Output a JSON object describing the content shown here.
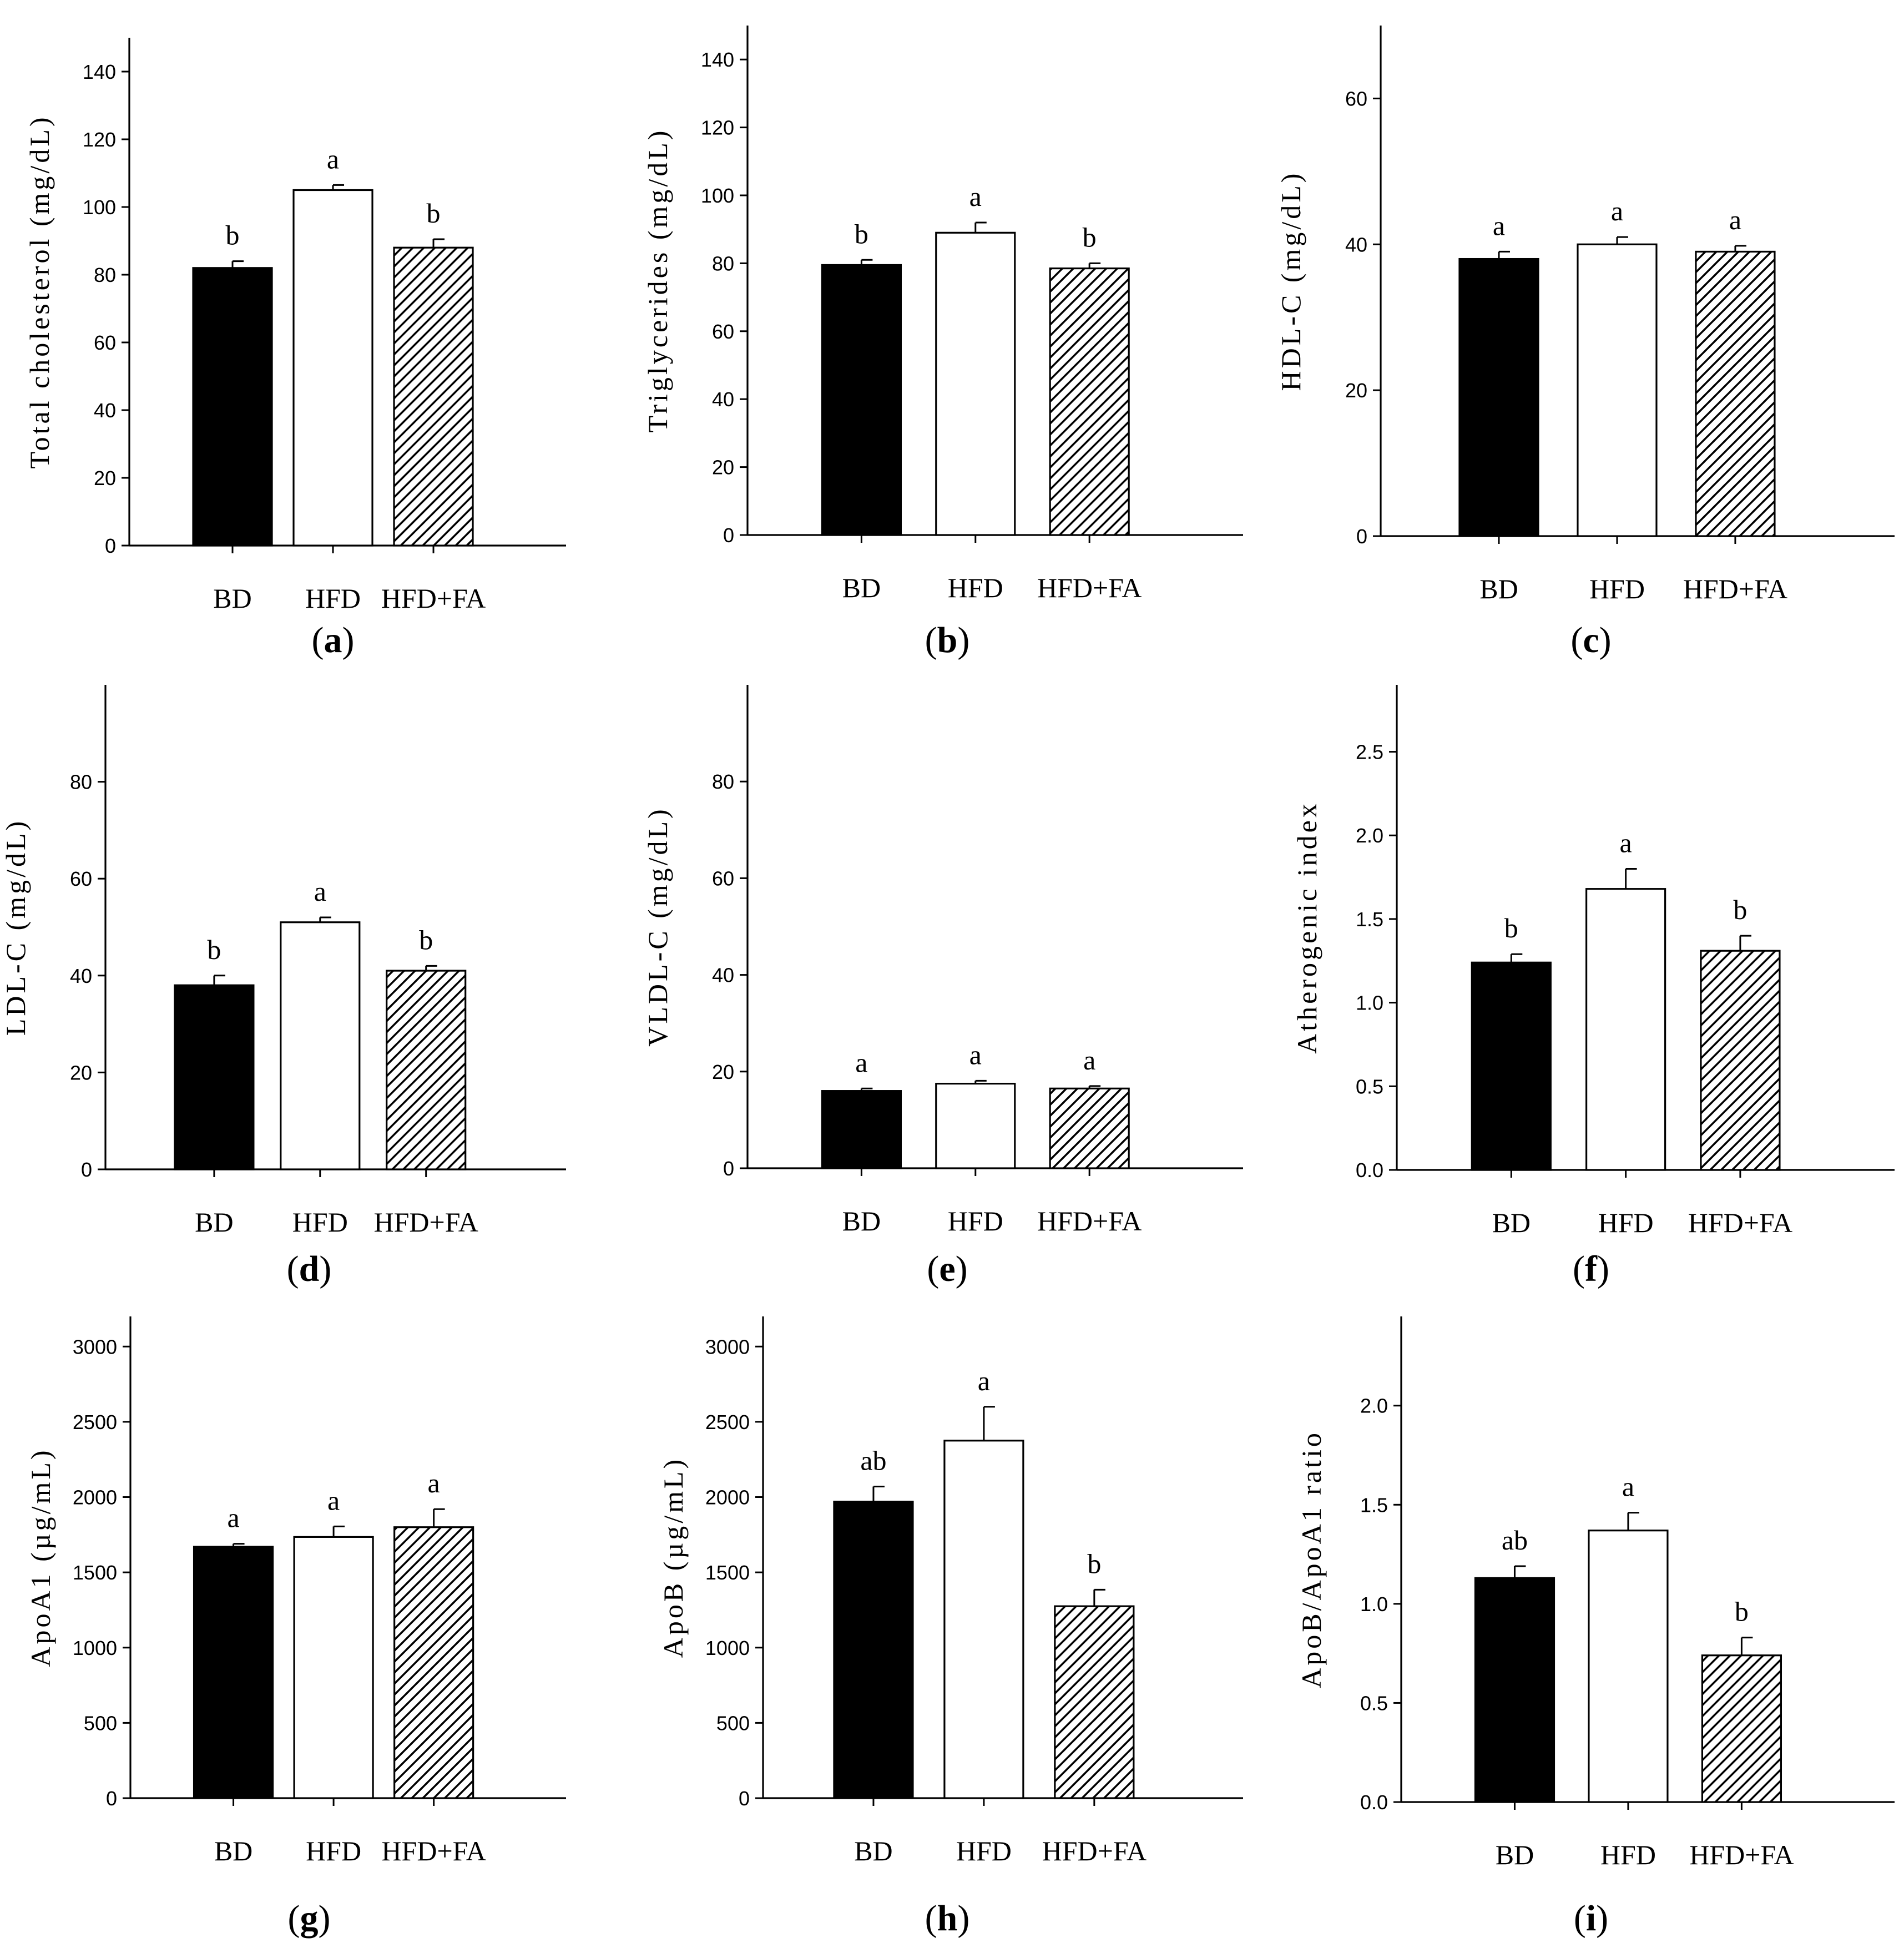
{
  "fill_colors": {
    "BD": "#000000",
    "HFD": "#ffffff",
    "HFD+FA": "hatch"
  },
  "chart_data": [
    {
      "panel": "a",
      "label": "(a)",
      "label_letter": "a",
      "type": "bar",
      "title": "",
      "ylabel": "Total cholesterol (mg/dL)",
      "categories": [
        "BD",
        "HFD",
        "HFD+FA"
      ],
      "values": [
        82,
        105,
        88
      ],
      "errors": [
        2,
        1.5,
        2.5
      ],
      "significance": [
        "b",
        "a",
        "b"
      ],
      "ylim": [
        0,
        150
      ],
      "yticks": [
        0,
        20,
        40,
        60,
        80,
        100,
        120,
        140
      ],
      "ytick_labels": [
        "0",
        "20",
        "40",
        "60",
        "80",
        "100",
        "120",
        "140"
      ]
    },
    {
      "panel": "b",
      "label": "(b)",
      "label_letter": "b",
      "type": "bar",
      "title": "",
      "ylabel": "Triglycerides (mg/dL)",
      "categories": [
        "BD",
        "HFD",
        "HFD+FA"
      ],
      "values": [
        79.5,
        89,
        78.5
      ],
      "errors": [
        1.5,
        3,
        1.5
      ],
      "significance": [
        "b",
        "a",
        "b"
      ],
      "ylim": [
        0,
        150
      ],
      "yticks": [
        0,
        20,
        40,
        60,
        80,
        100,
        120,
        140
      ],
      "ytick_labels": [
        "0",
        "20",
        "40",
        "60",
        "80",
        "100",
        "120",
        "140"
      ]
    },
    {
      "panel": "c",
      "label": "(c)",
      "label_letter": "c",
      "type": "bar",
      "title": "",
      "ylabel": "HDL-C (mg/dL)",
      "categories": [
        "BD",
        "HFD",
        "HFD+FA"
      ],
      "values": [
        38,
        40,
        39
      ],
      "errors": [
        1,
        1,
        0.8
      ],
      "significance": [
        "a",
        "a",
        "a"
      ],
      "ylim": [
        0,
        70
      ],
      "yticks": [
        0,
        20,
        40,
        60
      ],
      "ytick_labels": [
        "0",
        "20",
        "40",
        "60"
      ]
    },
    {
      "panel": "d",
      "label": "(d)",
      "label_letter": "d",
      "type": "bar",
      "title": "",
      "ylabel": "LDL-C (mg/dL)",
      "categories": [
        "BD",
        "HFD",
        "HFD+FA"
      ],
      "values": [
        38,
        51,
        41
      ],
      "errors": [
        2,
        1,
        1
      ],
      "significance": [
        "b",
        "a",
        "b"
      ],
      "ylim": [
        0,
        100
      ],
      "yticks": [
        0,
        20,
        40,
        60,
        80
      ],
      "ytick_labels": [
        "0",
        "20",
        "40",
        "60",
        "80"
      ]
    },
    {
      "panel": "e",
      "label": "(e)",
      "label_letter": "e",
      "type": "bar",
      "title": "",
      "ylabel": "VLDL-C (mg/dL)",
      "categories": [
        "BD",
        "HFD",
        "HFD+FA"
      ],
      "values": [
        16,
        17.5,
        16.5
      ],
      "errors": [
        0.5,
        0.6,
        0.5
      ],
      "significance": [
        "a",
        "a",
        "a"
      ],
      "ylim": [
        0,
        100
      ],
      "yticks": [
        0,
        20,
        40,
        60,
        80
      ],
      "ytick_labels": [
        "0",
        "20",
        "40",
        "60",
        "80"
      ]
    },
    {
      "panel": "f",
      "label": "(f)",
      "label_letter": "f",
      "type": "bar",
      "title": "",
      "ylabel": "Atherogenic index",
      "categories": [
        "BD",
        "HFD",
        "HFD+FA"
      ],
      "values": [
        1.24,
        1.68,
        1.31
      ],
      "errors": [
        0.05,
        0.12,
        0.09
      ],
      "significance": [
        "b",
        "a",
        "b"
      ],
      "ylim": [
        0,
        2.9
      ],
      "yticks": [
        0,
        0.5,
        1.0,
        1.5,
        2.0,
        2.5
      ],
      "ytick_labels": [
        "0.0",
        "0.5",
        "1.0",
        "1.5",
        "2.0",
        "2.5"
      ]
    },
    {
      "panel": "g",
      "label": "(g)",
      "label_letter": "g",
      "type": "bar",
      "title": "",
      "ylabel": "ApoA1 (µg/mL)",
      "categories": [
        "BD",
        "HFD",
        "HFD+FA"
      ],
      "values": [
        1670,
        1735,
        1800
      ],
      "errors": [
        20,
        70,
        120
      ],
      "significance": [
        "a",
        "a",
        "a"
      ],
      "ylim": [
        0,
        3200
      ],
      "yticks": [
        0,
        500,
        1000,
        1500,
        2000,
        2500,
        3000
      ],
      "ytick_labels": [
        "0",
        "500",
        "1000",
        "1500",
        "2000",
        "2500",
        "3000"
      ]
    },
    {
      "panel": "h",
      "label": "(h)",
      "label_letter": "h",
      "type": "bar",
      "title": "",
      "ylabel": "ApoB (µg/mL)",
      "categories": [
        "BD",
        "HFD",
        "HFD+FA"
      ],
      "values": [
        1970,
        2375,
        1275
      ],
      "errors": [
        100,
        225,
        110
      ],
      "significance": [
        "ab",
        "a",
        "b"
      ],
      "ylim": [
        0,
        3200
      ],
      "yticks": [
        0,
        500,
        1000,
        1500,
        2000,
        2500,
        3000
      ],
      "ytick_labels": [
        "0",
        "500",
        "1000",
        "1500",
        "2000",
        "2500",
        "3000"
      ]
    },
    {
      "panel": "i",
      "label": "(i)",
      "label_letter": "i",
      "type": "bar",
      "title": "",
      "ylabel": "ApoB/ApoA1 ratio",
      "categories": [
        "BD",
        "HFD",
        "HFD+FA"
      ],
      "values": [
        1.13,
        1.37,
        0.74
      ],
      "errors": [
        0.06,
        0.09,
        0.09
      ],
      "significance": [
        "ab",
        "a",
        "b"
      ],
      "ylim": [
        0,
        2.45
      ],
      "yticks": [
        0,
        0.5,
        1.0,
        1.5,
        2.0
      ],
      "ytick_labels": [
        "0.0",
        "0.5",
        "1.0",
        "1.5",
        "2.0"
      ]
    }
  ]
}
